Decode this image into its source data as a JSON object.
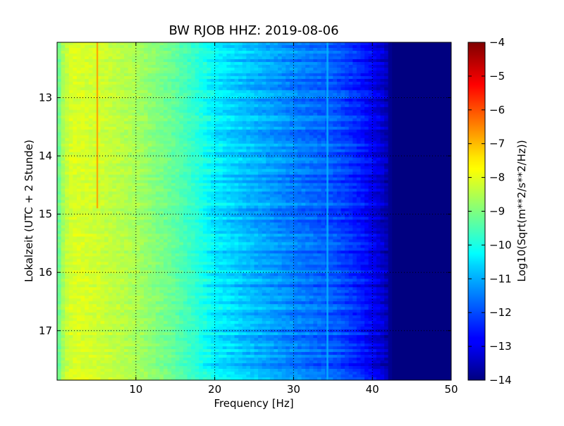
{
  "chart_data": {
    "type": "heatmap",
    "title": "BW RJOB HHZ: 2019-08-06",
    "xlabel": "Frequency [Hz]",
    "ylabel": "Lokalzeit (UTC + 2 Stunde)",
    "xlim": [
      0,
      50
    ],
    "ylim": [
      12.05,
      17.85
    ],
    "y_inverted": true,
    "x_ticks": [
      10,
      20,
      30,
      40,
      50
    ],
    "x_tick_labels": [
      "10",
      "20",
      "30",
      "40",
      "50"
    ],
    "y_ticks": [
      13,
      14,
      15,
      16,
      17
    ],
    "y_tick_labels": [
      "13",
      "14",
      "15",
      "16",
      "17"
    ],
    "grid": true,
    "colorbar": {
      "label": "Log10(Sqrt(m**2/s**2/Hz))",
      "range": [
        -14,
        -4
      ],
      "ticks": [
        -4,
        -5,
        -6,
        -7,
        -8,
        -9,
        -10,
        -11,
        -12,
        -13,
        -14
      ],
      "tick_labels": [
        "−4",
        "−5",
        "−6",
        "−7",
        "−8",
        "−9",
        "−10",
        "−11",
        "−12",
        "−13",
        "−14"
      ],
      "colormap": "jet"
    },
    "approx_profile": {
      "frequency_hz": [
        0,
        1,
        2,
        5,
        10,
        15,
        18,
        20,
        25,
        30,
        35,
        38,
        40,
        41.5,
        42.5,
        50
      ],
      "log10_amplitude": [
        -9.4,
        -8.4,
        -8.1,
        -8.2,
        -8.6,
        -9.3,
        -9.9,
        -10.4,
        -11.0,
        -11.5,
        -11.9,
        -12.4,
        -12.9,
        -13.3,
        -14.0,
        -14.0
      ]
    },
    "features": [
      {
        "frequency_hz": 5.1,
        "time_start": 12.05,
        "time_end": 14.9,
        "log10_amplitude": -6.8
      },
      {
        "frequency_hz": 34.3,
        "time_start": 12.05,
        "time_end": 17.85,
        "log10_amplitude": -11.0
      }
    ]
  }
}
